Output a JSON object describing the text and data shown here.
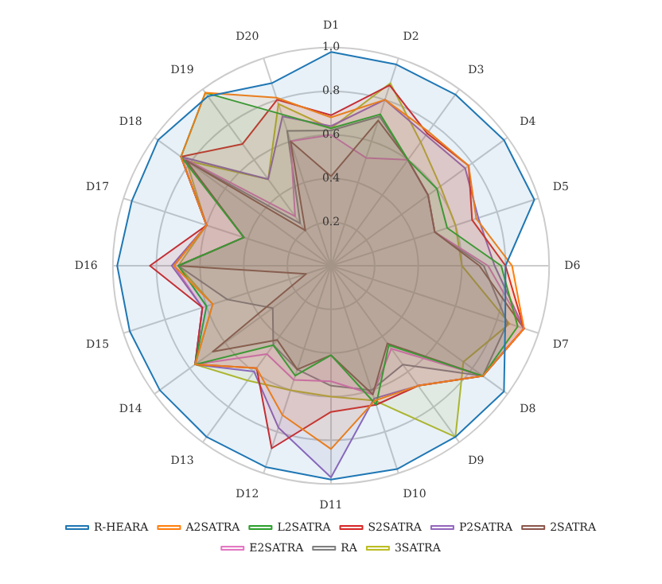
{
  "chart_data": {
    "type": "radar",
    "categories": [
      "D1",
      "D2",
      "D3",
      "D4",
      "D5",
      "D6",
      "D7",
      "D8",
      "D9",
      "D10",
      "D11",
      "D12",
      "D13",
      "D14",
      "D15",
      "D16",
      "D17",
      "D18",
      "D19",
      "D20"
    ],
    "ylim": [
      0,
      1.0
    ],
    "yticks": [
      0.2,
      0.4,
      0.6,
      0.8,
      {
        "value": 1.0,
        "label": "1.0"
      }
    ],
    "grid": true,
    "legend": "bottom",
    "series": [
      {
        "name": "R-HEARA",
        "color": "#1f77b4",
        "values": [
          0.98,
          0.97,
          0.97,
          0.98,
          0.98,
          0.8,
          0.84,
          0.98,
          0.97,
          0.98,
          0.98,
          0.97,
          0.97,
          0.97,
          0.97,
          0.98,
          0.96,
          0.98,
          0.96,
          0.88
        ]
      },
      {
        "name": "A2SATRA",
        "color": "#ff7f0e",
        "values": [
          0.68,
          0.8,
          0.76,
          0.78,
          0.7,
          0.83,
          0.93,
          0.86,
          0.68,
          0.65,
          0.84,
          0.72,
          0.58,
          0.77,
          0.57,
          0.72,
          0.6,
          0.85,
          0.98,
          0.81
        ]
      },
      {
        "name": "L2SATRA",
        "color": "#2ca02c",
        "values": [
          0.63,
          0.73,
          0.6,
          0.6,
          0.56,
          0.78,
          0.9,
          0.86,
          0.45,
          0.67,
          0.41,
          0.53,
          0.45,
          0.77,
          0.6,
          0.7,
          0.42,
          0.85,
          0.98,
          0.73
        ]
      },
      {
        "name": "S2SATRA",
        "color": "#d62728",
        "values": [
          0.69,
          0.87,
          0.75,
          0.78,
          0.68,
          0.8,
          0.93,
          0.86,
          0.68,
          0.67,
          0.67,
          0.88,
          0.58,
          0.77,
          0.62,
          0.83,
          0.6,
          0.85,
          0.69,
          0.8
        ]
      },
      {
        "name": "P2SATRA",
        "color": "#9467bd",
        "values": [
          0.64,
          0.8,
          0.74,
          0.76,
          0.71,
          0.75,
          0.93,
          0.86,
          0.68,
          0.64,
          0.97,
          0.78,
          0.6,
          0.77,
          0.62,
          0.73,
          0.6,
          0.85,
          0.49,
          0.72
        ]
      },
      {
        "name": "2SATRA",
        "color": "#8c564b",
        "values": [
          0.41,
          0.7,
          0.6,
          0.55,
          0.5,
          0.68,
          0.93,
          0.86,
          0.44,
          0.62,
          0.41,
          0.5,
          0.42,
          0.67,
          0.12,
          0.7,
          0.42,
          0.82,
          0.2,
          0.6
        ]
      },
      {
        "name": "E2SATRA",
        "color": "#e377c2",
        "values": [
          0.6,
          0.52,
          0.6,
          0.55,
          0.5,
          0.72,
          0.93,
          0.86,
          0.47,
          0.62,
          0.53,
          0.55,
          0.5,
          0.77,
          0.62,
          0.72,
          0.6,
          0.85,
          0.28,
          0.6
        ]
      },
      {
        "name": "RA",
        "color": "#7f7f7f",
        "values": [
          0.62,
          0.72,
          0.6,
          0.55,
          0.5,
          0.7,
          0.85,
          0.86,
          0.56,
          0.6,
          0.55,
          0.5,
          0.45,
          0.33,
          0.5,
          0.7,
          0.42,
          0.83,
          0.24,
          0.65
        ]
      },
      {
        "name": "3SATRA",
        "color": "#bcbd22",
        "values": [
          0.63,
          0.88,
          0.7,
          0.62,
          0.6,
          0.6,
          0.86,
          0.75,
          0.97,
          0.65,
          0.6,
          0.6,
          0.65,
          0.77,
          0.57,
          0.7,
          0.6,
          0.82,
          0.49,
          0.78
        ]
      }
    ]
  }
}
